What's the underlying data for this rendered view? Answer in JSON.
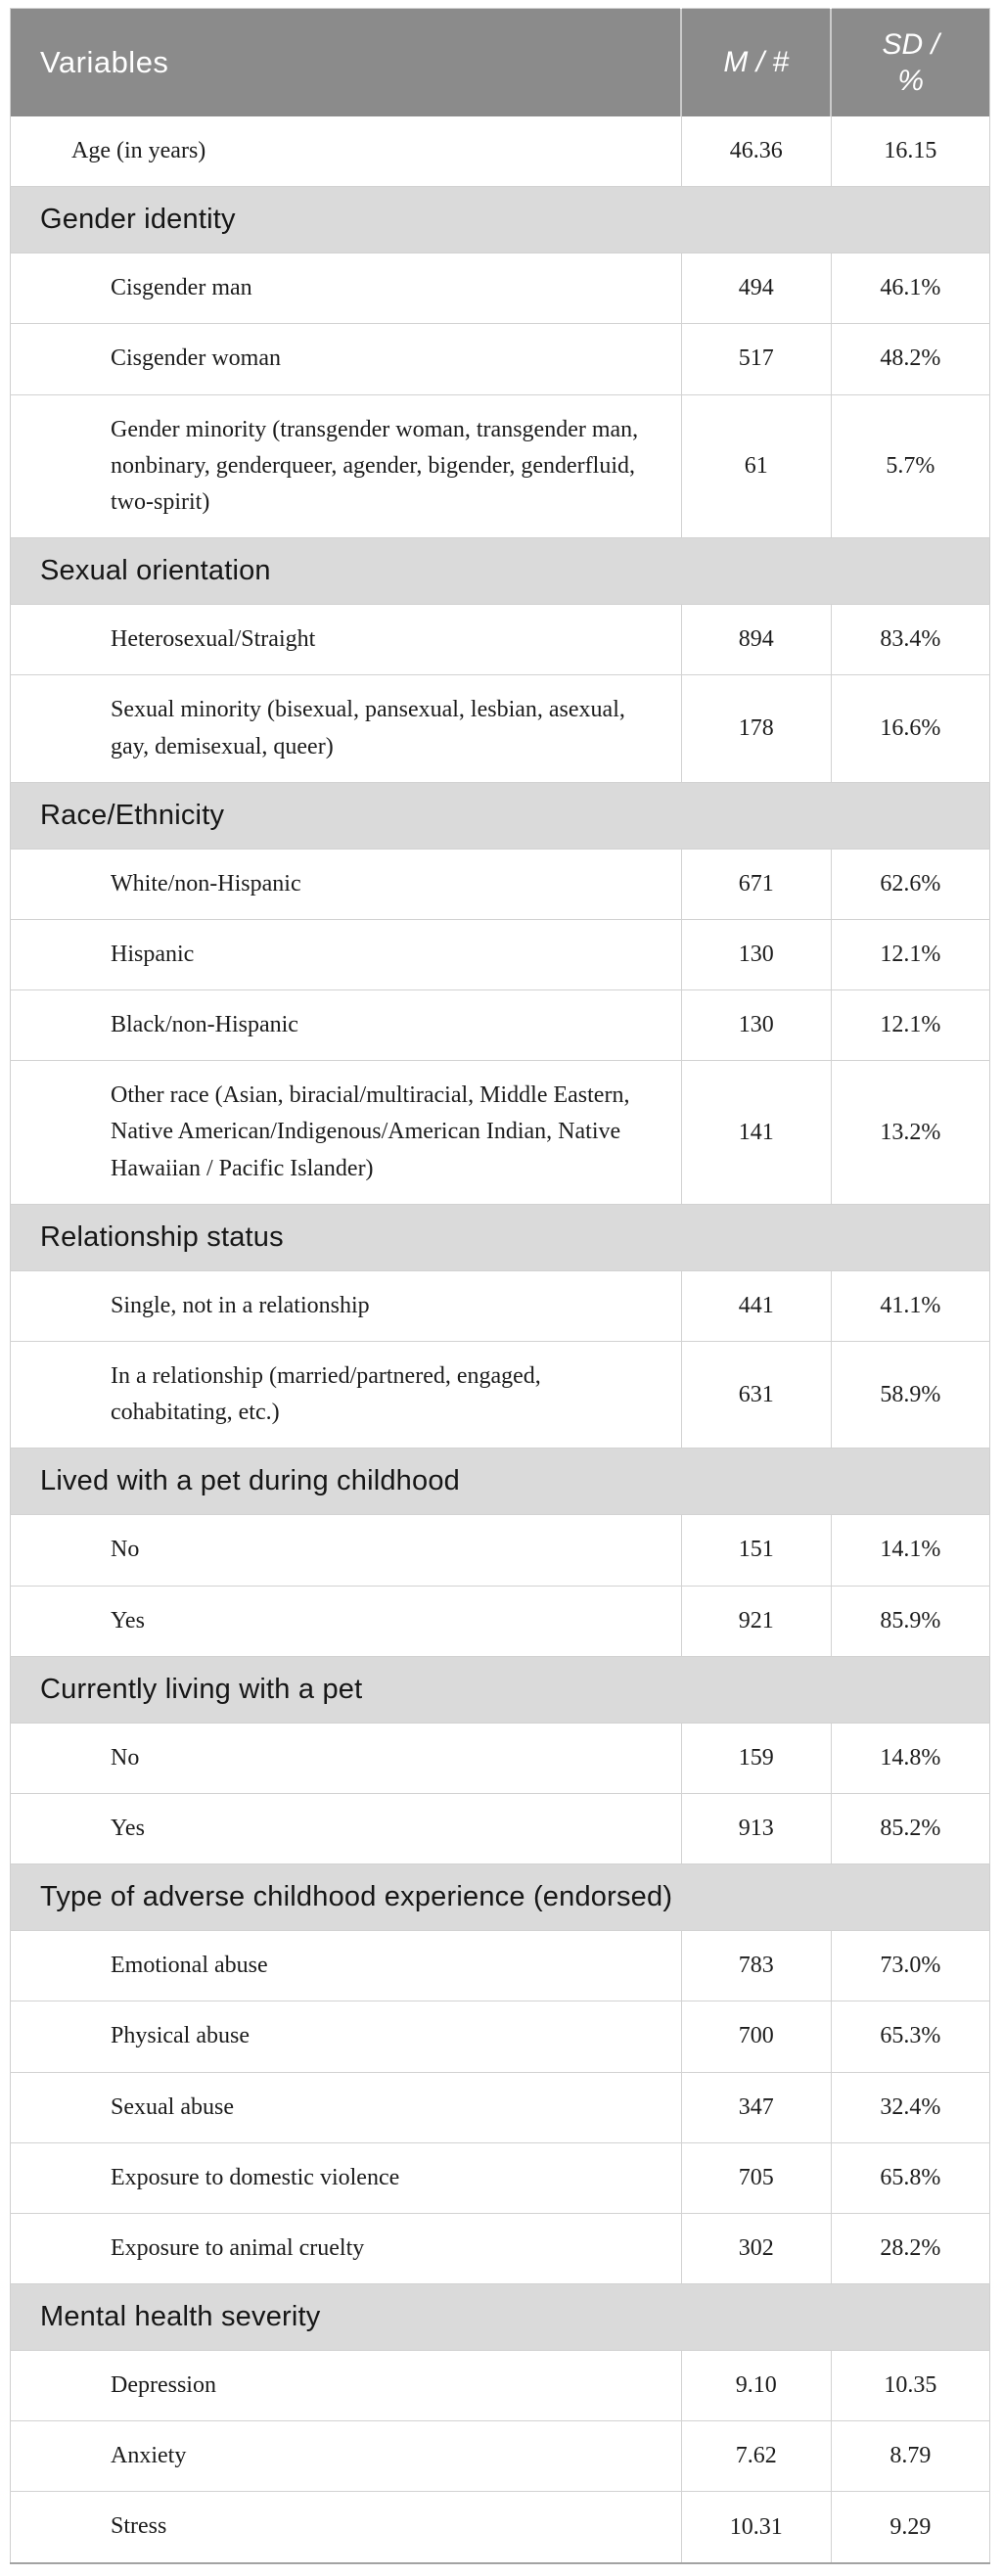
{
  "colors": {
    "header_bg": "#8b8b8b",
    "section_bg": "#dadada",
    "row_line": "#d2d2d2",
    "header_text": "#ffffff",
    "body_text": "#1c1c1c"
  },
  "table": {
    "header": {
      "variables": "Variables",
      "m_col": "M / #",
      "sd_col": "SD / %"
    },
    "rows": [
      {
        "type": "data",
        "indent": false,
        "label": "Age (in years)",
        "v1": "46.36",
        "v2": "16.15"
      },
      {
        "type": "section",
        "label": "Gender identity"
      },
      {
        "type": "data",
        "indent": true,
        "label": "Cisgender man",
        "v1": "494",
        "v2": "46.1%"
      },
      {
        "type": "data",
        "indent": true,
        "label": "Cisgender woman",
        "v1": "517",
        "v2": "48.2%"
      },
      {
        "type": "data",
        "indent": true,
        "label": "Gender minority (transgender woman, transgender man, nonbinary, genderqueer, agender, bigender, genderfluid, two-spirit)",
        "v1": "61",
        "v2": "5.7%"
      },
      {
        "type": "section",
        "label": "Sexual orientation"
      },
      {
        "type": "data",
        "indent": true,
        "label": "Heterosexual/Straight",
        "v1": "894",
        "v2": "83.4%"
      },
      {
        "type": "data",
        "indent": true,
        "label": "Sexual minority (bisexual, pansexual, lesbian, asexual, gay, demisexual, queer)",
        "v1": "178",
        "v2": "16.6%"
      },
      {
        "type": "section",
        "label": "Race/Ethnicity"
      },
      {
        "type": "data",
        "indent": true,
        "label": "White/non-Hispanic",
        "v1": "671",
        "v2": "62.6%"
      },
      {
        "type": "data",
        "indent": true,
        "label": "Hispanic",
        "v1": "130",
        "v2": "12.1%"
      },
      {
        "type": "data",
        "indent": true,
        "label": "Black/non-Hispanic",
        "v1": "130",
        "v2": "12.1%"
      },
      {
        "type": "data",
        "indent": true,
        "label": "Other race (Asian, biracial/multiracial, Middle Eastern, Native American/Indigenous/American Indian, Native Hawaiian / Pacific Islander)",
        "v1": "141",
        "v2": "13.2%"
      },
      {
        "type": "section",
        "label": "Relationship status"
      },
      {
        "type": "data",
        "indent": true,
        "label": "Single, not in a relationship",
        "v1": "441",
        "v2": "41.1%"
      },
      {
        "type": "data",
        "indent": true,
        "label": "In a relationship (married/partnered, engaged, cohabitating, etc.)",
        "v1": "631",
        "v2": "58.9%"
      },
      {
        "type": "section",
        "label": "Lived with a pet during childhood"
      },
      {
        "type": "data",
        "indent": true,
        "label": "No",
        "v1": "151",
        "v2": "14.1%"
      },
      {
        "type": "data",
        "indent": true,
        "label": "Yes",
        "v1": "921",
        "v2": "85.9%"
      },
      {
        "type": "section",
        "label": "Currently living with a pet"
      },
      {
        "type": "data",
        "indent": true,
        "label": "No",
        "v1": "159",
        "v2": "14.8%"
      },
      {
        "type": "data",
        "indent": true,
        "label": "Yes",
        "v1": "913",
        "v2": "85.2%"
      },
      {
        "type": "section",
        "label": "Type of adverse childhood experience (endorsed)"
      },
      {
        "type": "data",
        "indent": true,
        "label": "Emotional abuse",
        "v1": "783",
        "v2": "73.0%"
      },
      {
        "type": "data",
        "indent": true,
        "label": "Physical abuse",
        "v1": "700",
        "v2": "65.3%"
      },
      {
        "type": "data",
        "indent": true,
        "label": "Sexual abuse",
        "v1": "347",
        "v2": "32.4%"
      },
      {
        "type": "data",
        "indent": true,
        "label": "Exposure to domestic violence",
        "v1": "705",
        "v2": "65.8%"
      },
      {
        "type": "data",
        "indent": true,
        "label": "Exposure to animal cruelty",
        "v1": "302",
        "v2": "28.2%"
      },
      {
        "type": "section",
        "label": "Mental health severity"
      },
      {
        "type": "data",
        "indent": true,
        "label": "Depression",
        "v1": "9.10",
        "v2": "10.35"
      },
      {
        "type": "data",
        "indent": true,
        "label": "Anxiety",
        "v1": "7.62",
        "v2": "8.79"
      },
      {
        "type": "data",
        "indent": true,
        "label": "Stress",
        "v1": "10.31",
        "v2": "9.29"
      }
    ]
  }
}
